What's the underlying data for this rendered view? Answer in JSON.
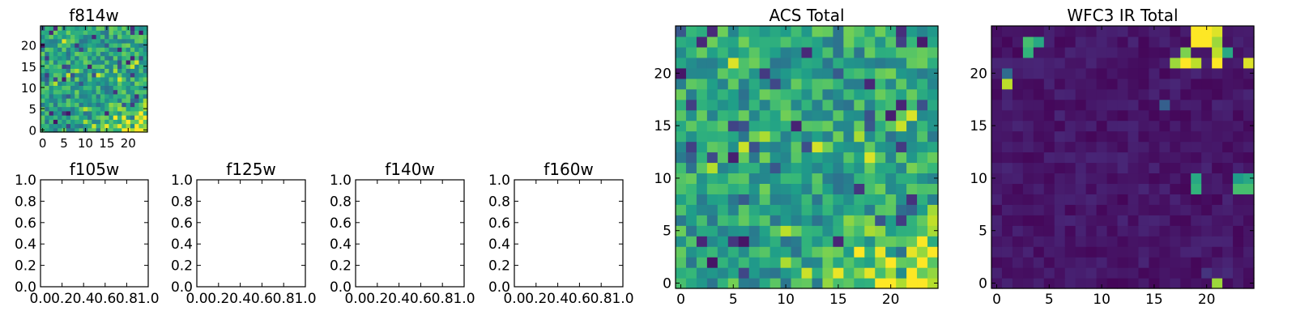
{
  "chart_data": [
    {
      "type": "heatmap",
      "title": "f814w",
      "xlabel": "",
      "ylabel": "",
      "size": 25,
      "xlim": [
        -0.5,
        24.5
      ],
      "ylim": [
        -0.5,
        24.5
      ],
      "xticks": [
        0,
        5,
        10,
        15,
        20
      ],
      "yticks": [
        0,
        5,
        10,
        15,
        20
      ],
      "colormap": "viridis",
      "value_range": [
        0,
        1
      ],
      "trend": "noisy mid-to-high values everywhere, brighter toward bottom-right corner",
      "same_image_as": "ACS Total"
    },
    {
      "type": "empty",
      "title": "f105w",
      "xlim": [
        0,
        1
      ],
      "ylim": [
        0,
        1
      ],
      "xticks": [
        "0.0",
        "0.2",
        "0.4",
        "0.6",
        "0.8",
        "1.0"
      ],
      "yticks": [
        "0.0",
        "0.2",
        "0.4",
        "0.6",
        "0.8",
        "1.0"
      ]
    },
    {
      "type": "empty",
      "title": "f125w",
      "xlim": [
        0,
        1
      ],
      "ylim": [
        0,
        1
      ],
      "xticks": [
        "0.0",
        "0.2",
        "0.4",
        "0.6",
        "0.8",
        "1.0"
      ],
      "yticks": [
        "0.0",
        "0.2",
        "0.4",
        "0.6",
        "0.8",
        "1.0"
      ]
    },
    {
      "type": "empty",
      "title": "f140w",
      "xlim": [
        0,
        1
      ],
      "ylim": [
        0,
        1
      ],
      "xticks": [
        "0.0",
        "0.2",
        "0.4",
        "0.6",
        "0.8",
        "1.0"
      ],
      "yticks": [
        "0.0",
        "0.2",
        "0.4",
        "0.6",
        "0.8",
        "1.0"
      ]
    },
    {
      "type": "empty",
      "title": "f160w",
      "xlim": [
        0,
        1
      ],
      "ylim": [
        0,
        1
      ],
      "xticks": [
        "0.0",
        "0.2",
        "0.4",
        "0.6",
        "0.8",
        "1.0"
      ],
      "yticks": [
        "0.0",
        "0.2",
        "0.4",
        "0.6",
        "0.8",
        "1.0"
      ]
    },
    {
      "type": "heatmap",
      "title": "ACS Total",
      "xlabel": "",
      "ylabel": "",
      "size": 25,
      "xlim": [
        -0.5,
        24.5
      ],
      "ylim": [
        -0.5,
        24.5
      ],
      "xticks": [
        0,
        5,
        10,
        15,
        20
      ],
      "yticks": [
        0,
        5,
        10,
        15,
        20
      ],
      "colormap": "viridis",
      "value_range": [
        0,
        1
      ],
      "trend": "noisy mid-to-high values everywhere, brighter toward bottom-right corner"
    },
    {
      "type": "heatmap",
      "title": "WFC3 IR Total",
      "xlabel": "",
      "ylabel": "",
      "size": 25,
      "xlim": [
        -0.5,
        24.5
      ],
      "ylim": [
        -0.5,
        24.5
      ],
      "xticks": [
        0,
        5,
        10,
        15,
        20
      ],
      "yticks": [
        0,
        5,
        10,
        15,
        20
      ],
      "colormap": "viridis",
      "value_range": [
        0,
        1
      ],
      "background_level": 0.06,
      "bright_cells": [
        {
          "x": 19,
          "y": 24,
          "v": 1.0
        },
        {
          "x": 20,
          "y": 24,
          "v": 1.0
        },
        {
          "x": 21,
          "y": 24,
          "v": 0.95
        },
        {
          "x": 19,
          "y": 23,
          "v": 1.0
        },
        {
          "x": 20,
          "y": 23,
          "v": 1.0
        },
        {
          "x": 21,
          "y": 23,
          "v": 0.85
        },
        {
          "x": 18,
          "y": 22,
          "v": 0.8
        },
        {
          "x": 21,
          "y": 22,
          "v": 0.9
        },
        {
          "x": 22,
          "y": 22,
          "v": 0.6
        },
        {
          "x": 17,
          "y": 21,
          "v": 0.85
        },
        {
          "x": 18,
          "y": 21,
          "v": 1.0
        },
        {
          "x": 19,
          "y": 21,
          "v": 0.9
        },
        {
          "x": 21,
          "y": 21,
          "v": 1.0
        },
        {
          "x": 24,
          "y": 21,
          "v": 0.95
        },
        {
          "x": 3,
          "y": 23,
          "v": 0.7
        },
        {
          "x": 4,
          "y": 23,
          "v": 0.6
        },
        {
          "x": 3,
          "y": 22,
          "v": 0.65
        },
        {
          "x": 1,
          "y": 20,
          "v": 0.35
        },
        {
          "x": 1,
          "y": 19,
          "v": 0.9
        },
        {
          "x": 16,
          "y": 17,
          "v": 0.3
        },
        {
          "x": 19,
          "y": 10,
          "v": 0.6
        },
        {
          "x": 19,
          "y": 9,
          "v": 0.65
        },
        {
          "x": 23,
          "y": 10,
          "v": 0.55
        },
        {
          "x": 24,
          "y": 10,
          "v": 0.6
        },
        {
          "x": 23,
          "y": 9,
          "v": 0.7
        },
        {
          "x": 24,
          "y": 9,
          "v": 0.7
        },
        {
          "x": 21,
          "y": 0,
          "v": 0.85
        },
        {
          "x": 20,
          "y": 1,
          "v": 0.15
        },
        {
          "x": 22,
          "y": 1,
          "v": 0.12
        }
      ]
    }
  ]
}
